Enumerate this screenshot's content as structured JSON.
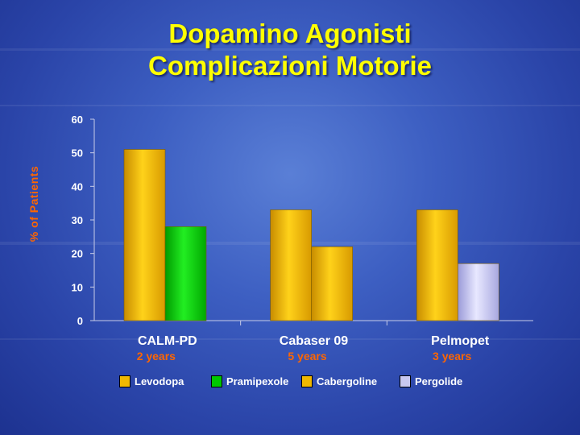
{
  "title_line1": "Dopamino Agonisti",
  "title_line2": "Complicazioni Motorie",
  "chart_data": {
    "type": "bar",
    "ylabel": "% of Patients",
    "ylim": [
      0,
      60
    ],
    "yticks": [
      0,
      10,
      20,
      30,
      40,
      50,
      60
    ],
    "grid": false,
    "legend_position": "bottom",
    "groups": [
      {
        "label": "CALM-PD",
        "sublabel": "2 years",
        "bars": [
          {
            "series": "Levodopa",
            "value": 51
          },
          {
            "series": "Pramipexole",
            "value": 28
          }
        ]
      },
      {
        "label": "Cabaser 09",
        "sublabel": "5 years",
        "bars": [
          {
            "series": "Levodopa",
            "value": 33
          },
          {
            "series": "Cabergoline",
            "value": 22
          }
        ]
      },
      {
        "label": "Pelmopet",
        "sublabel": "3 years",
        "bars": [
          {
            "series": "Levodopa",
            "value": 33
          },
          {
            "series": "Pergolide",
            "value": 17
          }
        ]
      }
    ],
    "series": [
      {
        "name": "Levodopa",
        "color": "#f0b800"
      },
      {
        "name": "Pramipexole",
        "color": "#00c800"
      },
      {
        "name": "Cabergoline",
        "color": "#f0b800"
      },
      {
        "name": "Pergolide",
        "color": "#c8c8f0"
      }
    ]
  }
}
